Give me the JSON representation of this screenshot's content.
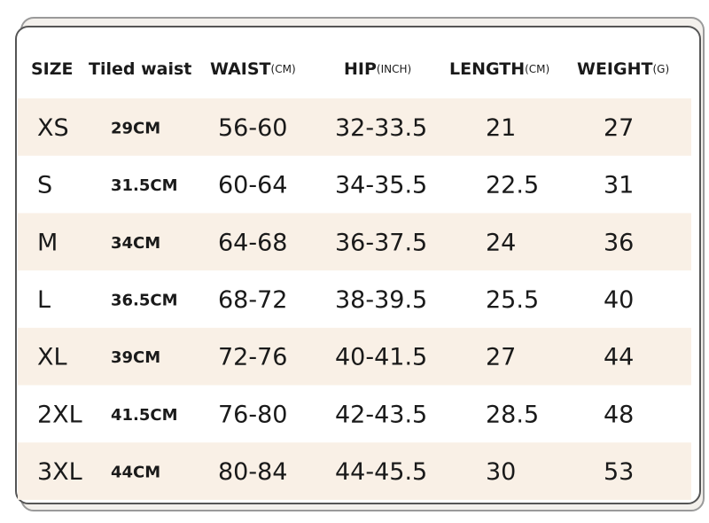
{
  "table": {
    "header": [
      {
        "label": "SIZE"
      },
      {
        "label": "Tiled waist"
      },
      {
        "label": "WAIST",
        "unit": "(CM)"
      },
      {
        "label": "HIP",
        "unit": "(INCH)"
      },
      {
        "label": "LENGTH",
        "unit": "(CM)"
      },
      {
        "label": "WEIGHT",
        "unit": "(G)"
      }
    ],
    "rows": [
      [
        "XS",
        "29CM",
        "56-60",
        "32-33.5",
        "21",
        "27"
      ],
      [
        "S",
        "31.5CM",
        "60-64",
        "34-35.5",
        "22.5",
        "31"
      ],
      [
        "M",
        "34CM",
        "64-68",
        "36-37.5",
        "24",
        "36"
      ],
      [
        "L",
        "36.5CM",
        "68-72",
        "38-39.5",
        "25.5",
        "40"
      ],
      [
        "XL",
        "39CM",
        "72-76",
        "40-41.5",
        "27",
        "44"
      ],
      [
        "2XL",
        "41.5CM",
        "76-80",
        "42-43.5",
        "28.5",
        "48"
      ],
      [
        "3XL",
        "44CM",
        "80-84",
        "44-45.5",
        "30",
        "53"
      ]
    ]
  }
}
